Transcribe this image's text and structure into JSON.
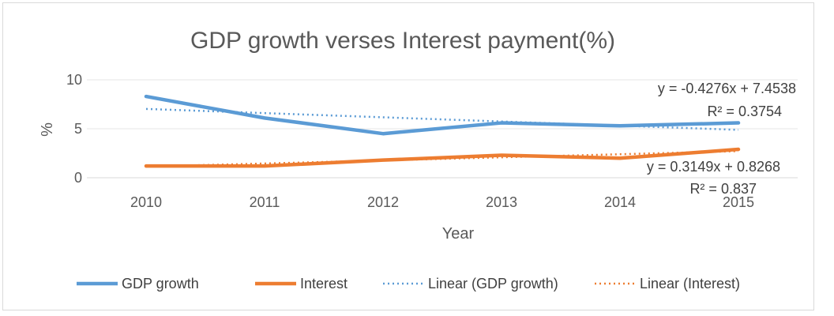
{
  "chart_data": {
    "type": "line",
    "title": "GDP growth verses Interest payment(%)",
    "xlabel": "Year",
    "ylabel": "%",
    "categories": [
      "2010",
      "2011",
      "2012",
      "2013",
      "2014",
      "2015"
    ],
    "ylim": [
      0,
      10
    ],
    "yticks": [
      "0",
      "5",
      "10"
    ],
    "grid": true,
    "legend_position": "bottom",
    "series": [
      {
        "name": "GDP growth",
        "values": [
          8.3,
          6.1,
          4.5,
          5.6,
          5.3,
          5.6
        ],
        "color": "#5b9bd5",
        "style": "solid"
      },
      {
        "name": "Interest",
        "values": [
          1.2,
          1.2,
          1.8,
          2.3,
          2.0,
          2.9
        ],
        "color": "#ed7d31",
        "style": "solid"
      }
    ],
    "trendlines": [
      {
        "name": "Linear (GDP growth)",
        "slope": -0.4276,
        "intercept": 7.4538,
        "color": "#5b9bd5",
        "style": "dotted",
        "equation": "y = -0.4276x + 7.4538",
        "r2": "R² = 0.3754"
      },
      {
        "name": "Linear (Interest)",
        "slope": 0.3149,
        "intercept": 0.8268,
        "color": "#ed7d31",
        "style": "dotted",
        "equation": "y = 0.3149x + 0.8268",
        "r2": "R² = 0.837"
      }
    ]
  }
}
